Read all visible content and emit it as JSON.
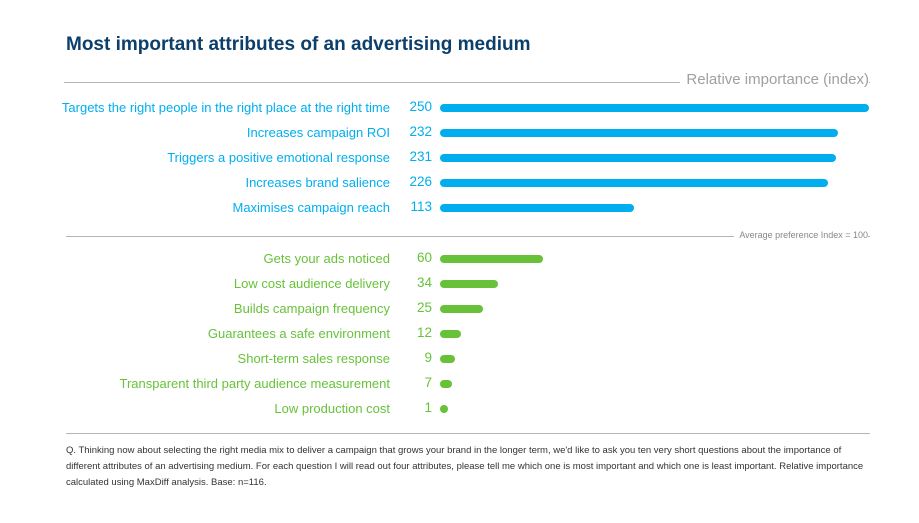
{
  "chart_data": {
    "type": "bar",
    "orientation": "horizontal",
    "title": "Most important attributes of an advertising medium",
    "xlabel": "Relative importance (index)",
    "reference_line": {
      "value": 100,
      "label": "Average preference Index = 100"
    },
    "colors": {
      "above_average": "#00aeef",
      "below_average": "#67c23a",
      "title": "#0d3f6b"
    },
    "categories": [
      "Targets the right people in the right place at the right time",
      "Increases campaign ROI",
      "Triggers a positive emotional response",
      "Increases brand salience",
      "Maximises campaign reach",
      "Gets your ads noticed",
      "Low cost audience delivery",
      "Builds campaign frequency",
      "Guarantees a safe environment",
      "Short-term sales response",
      "Transparent third party audience measurement",
      "Low production cost"
    ],
    "values": [
      250,
      232,
      231,
      226,
      113,
      60,
      34,
      25,
      12,
      9,
      7,
      1
    ],
    "grid": false
  },
  "footnote": "Q. Thinking now about selecting the right media mix to deliver a campaign that grows your brand in the longer term, we'd like to ask you ten very short questions about the importance of different attributes of an advertising medium. For each question I will read out four attributes, please tell me which one is most important and which one is least important. Relative importance calculated using MaxDiff analysis. Base: n=116."
}
